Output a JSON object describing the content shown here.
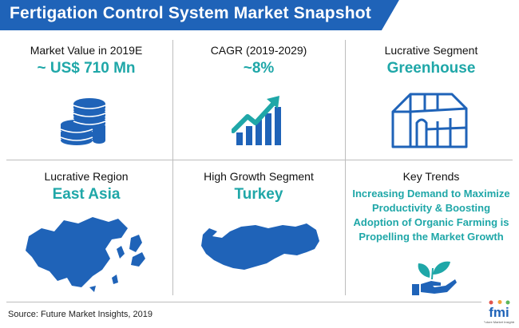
{
  "header": {
    "title": "Fertigation Control System Market Snapshot"
  },
  "cells": [
    {
      "label": "Market Value in 2019E",
      "value": "~ US$ 710 Mn",
      "icon": "coin-stack-icon"
    },
    {
      "label": "CAGR (2019-2029)",
      "value": "~8%",
      "icon": "growth-chart-icon"
    },
    {
      "label": "Lucrative Segment",
      "value": "Greenhouse",
      "icon": "greenhouse-icon"
    },
    {
      "label": "Lucrative Region",
      "value": "East Asia",
      "icon": "east-asia-map-icon"
    },
    {
      "label": "High Growth Segment",
      "value": "Turkey",
      "icon": "turkey-map-icon"
    },
    {
      "label": "Key Trends",
      "value": "Increasing Demand to Maximize Productivity & Boosting Adoption of Organic Farming is Propelling the Market Growth",
      "icon": "plant-hand-icon"
    }
  ],
  "footer": {
    "source": "Source: Future Market Insights, 2019",
    "logo_text": "fmi",
    "logo_subtext": "Future Market Insights"
  },
  "colors": {
    "banner": "#1f63b8",
    "accent": "#1fa7a8",
    "icon_blue": "#1f63b8",
    "divider": "#bdbdbd"
  }
}
